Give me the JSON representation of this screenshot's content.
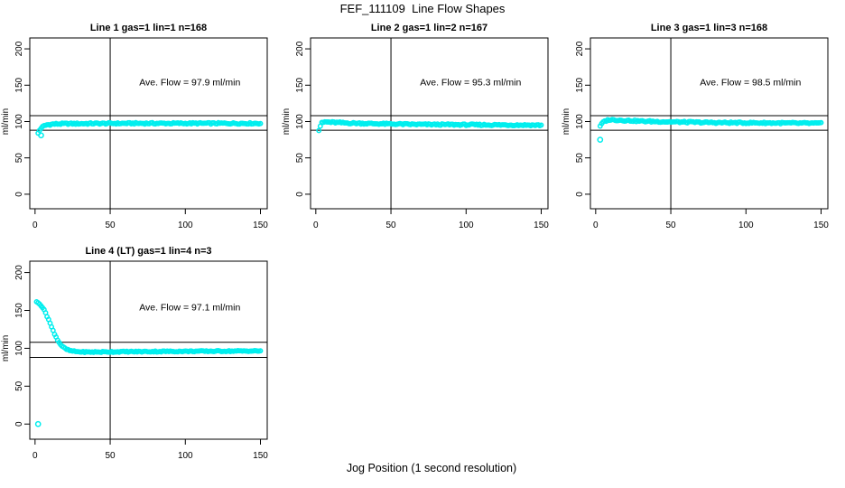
{
  "chart_data": {
    "type": "scatter",
    "title": "FEF_111109  Line Flow Shapes",
    "xlabel": "Jog Position (1 second resolution)",
    "ylabel": "ml/min",
    "point_color": "#00EEEE",
    "frame_color": "#000000",
    "x_ticks": [
      0,
      50,
      100,
      150
    ],
    "y_ticks": [
      0,
      50,
      100,
      150,
      200
    ],
    "xlim": [
      -3.5,
      154.5
    ],
    "ylim": [
      -20,
      215
    ],
    "vertical_ref_line_x": 50,
    "legend_position": "none",
    "grid": false,
    "panels": [
      {
        "title": "Line 1 gas=1 lin=1 n=168",
        "annotation": "Ave. Flow =  97.9  ml/min",
        "ave_flow_ml_min": 97.9,
        "n": 168,
        "ref_lines_y": [
          108,
          88
        ],
        "series": {
          "x_start": 2,
          "x_end": 150,
          "x_step": 1,
          "noise": 1.0,
          "mean_profile": [
            [
              2,
              84
            ],
            [
              3,
              88
            ],
            [
              4,
              91
            ],
            [
              6,
              94
            ],
            [
              8,
              95.5
            ],
            [
              12,
              96.5
            ],
            [
              20,
              97
            ],
            [
              60,
              97.5
            ],
            [
              150,
              97.5
            ]
          ]
        },
        "outliers": [
          [
            4,
            81
          ]
        ]
      },
      {
        "title": "Line 2 gas=1 lin=2 n=167",
        "annotation": "Ave. Flow =  95.3  ml/min",
        "ave_flow_ml_min": 95.3,
        "n": 167,
        "ref_lines_y": [
          108,
          88
        ],
        "series": {
          "x_start": 2,
          "x_end": 150,
          "x_step": 1,
          "noise": 1.0,
          "mean_profile": [
            [
              2,
              88
            ],
            [
              3,
              94
            ],
            [
              4,
              98
            ],
            [
              6,
              99.5
            ],
            [
              10,
              99
            ],
            [
              20,
              98
            ],
            [
              40,
              97
            ],
            [
              70,
              96
            ],
            [
              110,
              95.5
            ],
            [
              150,
              95
            ]
          ]
        },
        "outliers": []
      },
      {
        "title": "Line 3 gas=1 lin=3 n=168",
        "annotation": "Ave. Flow =  98.5  ml/min",
        "ave_flow_ml_min": 98.5,
        "n": 168,
        "ref_lines_y": [
          108,
          88
        ],
        "series": {
          "x_start": 3,
          "x_end": 150,
          "x_step": 1,
          "noise": 1.0,
          "mean_profile": [
            [
              3,
              93
            ],
            [
              4,
              97
            ],
            [
              6,
              100.5
            ],
            [
              9,
              102.5
            ],
            [
              15,
              102
            ],
            [
              30,
              100.5
            ],
            [
              50,
              99.5
            ],
            [
              80,
              98.5
            ],
            [
              120,
              98
            ],
            [
              150,
              97.5
            ]
          ]
        },
        "outliers": [
          [
            3,
            75
          ]
        ]
      },
      {
        "title": "Line 4 (LT) gas=1 lin=4 n=3",
        "annotation": "Ave. Flow =  97.1  ml/min",
        "ave_flow_ml_min": 97.1,
        "n": 3,
        "ref_lines_y": [
          108,
          88
        ],
        "series": {
          "x_start": 1,
          "x_end": 150,
          "x_step": 1,
          "noise": 0.7,
          "mean_profile": [
            [
              1,
              161
            ],
            [
              3,
              159
            ],
            [
              5,
              154
            ],
            [
              7,
              147
            ],
            [
              9,
              138
            ],
            [
              11,
              128
            ],
            [
              13,
              119
            ],
            [
              15,
              111
            ],
            [
              17,
              105
            ],
            [
              19,
              101
            ],
            [
              21,
              98.5
            ],
            [
              24,
              96.5
            ],
            [
              28,
              95.5
            ],
            [
              35,
              95
            ],
            [
              60,
              95.5
            ],
            [
              100,
              96
            ],
            [
              150,
              96.5
            ]
          ]
        },
        "outliers": [
          [
            2,
            0
          ]
        ]
      }
    ]
  }
}
